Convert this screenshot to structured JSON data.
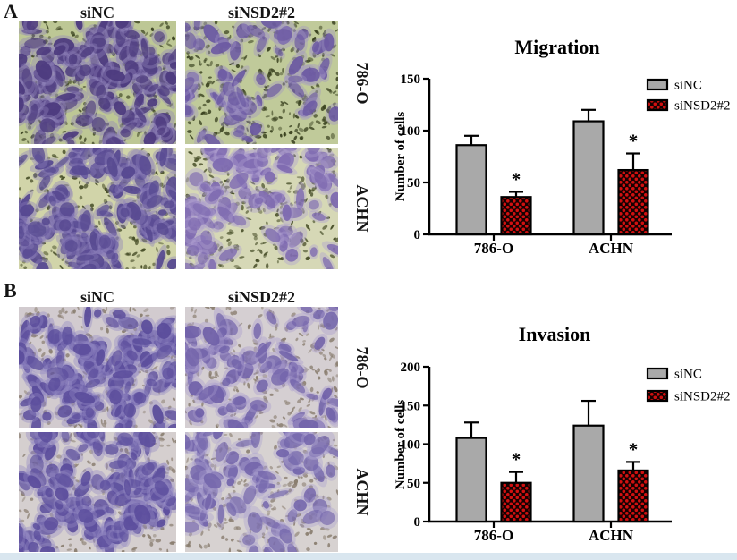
{
  "panels": [
    {
      "label": "A",
      "column_headers": [
        "siNC",
        "siNSD2#2"
      ],
      "row_labels": [
        "786-O",
        "ACHN"
      ],
      "micrographs": [
        {
          "row_label": "786-O",
          "column_header": "siNC",
          "density": "high",
          "cells": 175,
          "specks": 270,
          "seed": 11,
          "bg": "#bdc795",
          "cell": "#4c3a7e",
          "halo": "#9184ba",
          "speck": "#39411f"
        },
        {
          "row_label": "786-O",
          "column_header": "siNSD2#2",
          "density": "low",
          "cells": 65,
          "specks": 330,
          "seed": 22,
          "bg": "#c0ca9a",
          "cell": "#6b59a2",
          "halo": "#a193c6",
          "speck": "#39411f"
        },
        {
          "row_label": "ACHN",
          "column_header": "siNC",
          "density": "high",
          "cells": 165,
          "specks": 220,
          "seed": 33,
          "bg": "#d1d4a9",
          "cell": "#564890",
          "halo": "#8b7eba",
          "speck": "#434a24"
        },
        {
          "row_label": "ACHN",
          "column_header": "siNSD2#2",
          "density": "medium",
          "cells": 105,
          "specks": 260,
          "seed": 44,
          "bg": "#d6d8b6",
          "cell": "#7e6ab0",
          "halo": "#ad9ecf",
          "speck": "#434a24"
        }
      ]
    },
    {
      "label": "B",
      "column_headers": [
        "siNC",
        "siNSD2#2"
      ],
      "row_labels": [
        "786-O",
        "ACHN"
      ],
      "micrographs": [
        {
          "row_label": "786-O",
          "column_header": "siNC",
          "density": "high",
          "cells": 150,
          "specks": 230,
          "seed": 55,
          "bg": "#d2cbcf",
          "cell": "#5a4c9b",
          "halo": "#9187c2",
          "speck": "#8a7e70"
        },
        {
          "row_label": "786-O",
          "column_header": "siNSD2#2",
          "density": "medium",
          "cells": 85,
          "specks": 260,
          "seed": 66,
          "bg": "#d5cfd2",
          "cell": "#6f60a8",
          "halo": "#a79cce",
          "speck": "#8a7e70"
        },
        {
          "row_label": "ACHN",
          "column_header": "siNC",
          "density": "high",
          "cells": 160,
          "specks": 240,
          "seed": 77,
          "bg": "#d5cfcf",
          "cell": "#5b4d9c",
          "halo": "#938ac3",
          "speck": "#8a7e70"
        },
        {
          "row_label": "ACHN",
          "column_header": "siNSD2#2",
          "density": "low",
          "cells": 85,
          "specks": 280,
          "seed": 88,
          "bg": "#d7d2d1",
          "cell": "#7365ab",
          "halo": "#aaa0d0",
          "speck": "#8a7e70"
        }
      ]
    }
  ],
  "chart_data": [
    {
      "type": "bar",
      "title": "Migration",
      "ylabel": "Number of cells",
      "xlabel": "",
      "categories": [
        "786-O",
        "ACHN"
      ],
      "series": [
        {
          "name": "siNC",
          "values": [
            86,
            109
          ],
          "errors": [
            9,
            11
          ],
          "fill": "#a9a9a9",
          "pattern": "solid"
        },
        {
          "name": "siNSD2#2",
          "values": [
            36,
            62
          ],
          "errors": [
            5,
            16
          ],
          "fill": "#d21010",
          "pattern": "red-black-checker",
          "significance": [
            "*",
            "*"
          ]
        }
      ],
      "ylim": [
        0,
        150
      ],
      "yticks": [
        0,
        50,
        100,
        150
      ],
      "legend_position": "top-right",
      "grid": false
    },
    {
      "type": "bar",
      "title": "Invasion",
      "ylabel": "Number of cells",
      "xlabel": "",
      "categories": [
        "786-O",
        "ACHN"
      ],
      "series": [
        {
          "name": "siNC",
          "values": [
            108,
            124
          ],
          "errors": [
            20,
            32
          ],
          "fill": "#a9a9a9",
          "pattern": "solid"
        },
        {
          "name": "siNSD2#2",
          "values": [
            50,
            66
          ],
          "errors": [
            14,
            11
          ],
          "fill": "#d21010",
          "pattern": "red-black-checker",
          "significance": [
            "*",
            "*"
          ]
        }
      ],
      "ylim": [
        0,
        200
      ],
      "yticks": [
        0,
        50,
        100,
        150,
        200
      ],
      "legend_position": "top-right",
      "grid": false
    }
  ],
  "colors": {
    "bar_gray": "#a9a9a9",
    "bar_red": "#d21010",
    "axis_black": "#000000",
    "footer_strip": "#d9e6ef"
  }
}
